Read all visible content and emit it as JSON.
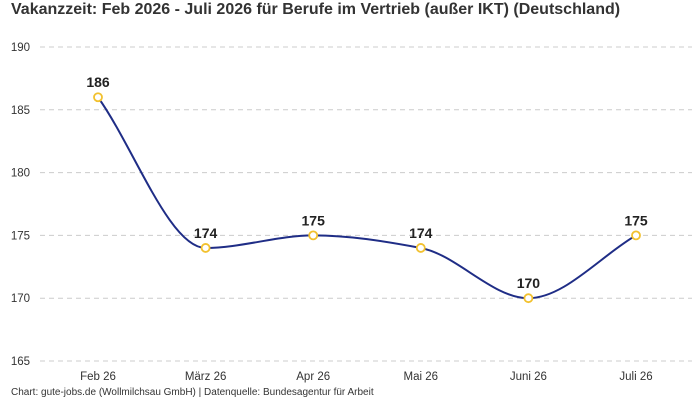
{
  "title": "Vakanzzeit: Feb 2026 - Juli 2026 für Berufe im Vertrieb (außer IKT) (Deutschland)",
  "source": "Chart: gute-jobs.de (Wollmilchsau GmbH) | Datenquelle: Bundesagentur für Arbeit",
  "colors": {
    "line": "#1f2d86",
    "marker_stroke": "#f2c12e",
    "marker_fill": "#ffffff",
    "grid": "#cccccc"
  },
  "chart_data": {
    "type": "line",
    "title": "Vakanzzeit: Feb 2026 - Juli 2026 für Berufe im Vertrieb (außer IKT) (Deutschland)",
    "categories": [
      "Feb 26",
      "März 26",
      "Apr 26",
      "Mai 26",
      "Juni 26",
      "Juli 26"
    ],
    "series": [
      {
        "values": [
          186,
          174,
          175,
          174,
          170,
          175
        ]
      }
    ],
    "data_labels": [
      "186",
      "174",
      "175",
      "174",
      "170",
      "175"
    ],
    "y_ticks": [
      190,
      185,
      180,
      175,
      170,
      165
    ],
    "ylim": [
      165,
      190
    ],
    "grid": true,
    "grid_style": "dashed",
    "smooth": true,
    "legend": "none"
  }
}
